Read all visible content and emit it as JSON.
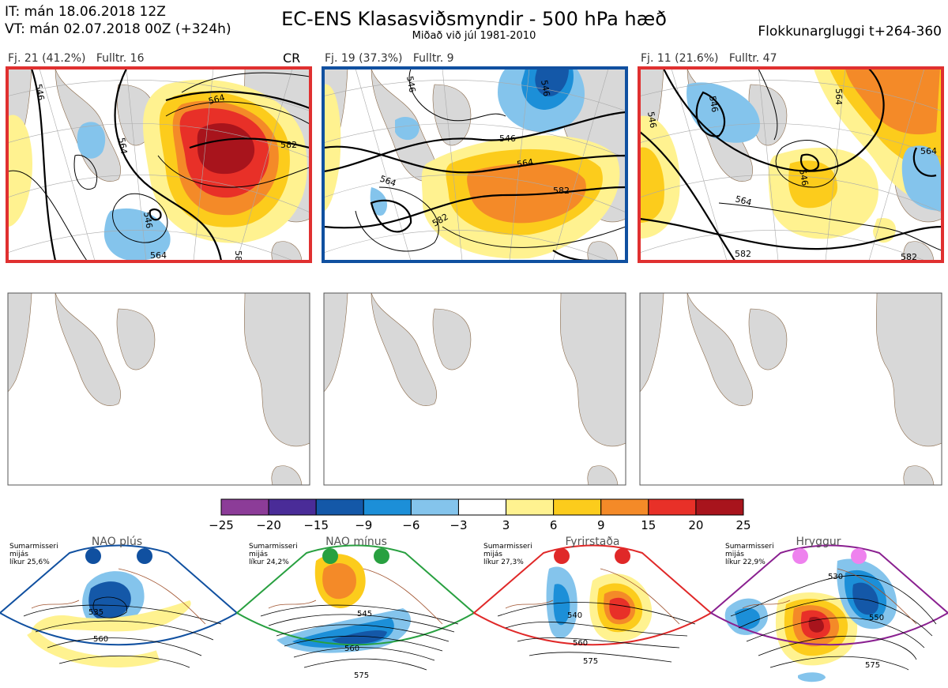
{
  "header": {
    "it": "IT: mán 18.06.2018 12Z",
    "vt": "VT: mán 02.07.2018 00Z  (+324h)",
    "title": "EC-ENS Klasasviðsmyndir - 500 hPa hæð",
    "subtitle": "Miðað við júl 1981-2010",
    "window": "Flokkunargluggi t+264-360"
  },
  "clusters": [
    {
      "label": "Fj. 21 (41.2%)",
      "rep": "Fulltr. 16",
      "tag": "CR",
      "frame_color": "#e03030",
      "contours": [
        "564",
        "564",
        "546",
        "582",
        "58",
        "546",
        "564"
      ]
    },
    {
      "label": "Fj. 19 (37.3%)",
      "rep": "Fulltr. 9",
      "tag": "",
      "frame_color": "#1050a0",
      "contours": [
        "546",
        "546",
        "564",
        "564",
        "582",
        "582",
        "546"
      ]
    },
    {
      "label": "Fj. 11 (21.6%)",
      "rep": "Fulltr. 47",
      "tag": "",
      "frame_color": "#e03030",
      "contours": [
        "546",
        "546",
        "564",
        "564",
        "546",
        "582",
        "564",
        "582"
      ]
    }
  ],
  "colorbar": {
    "ticks": [
      "−25",
      "−20",
      "−15",
      "−9",
      "−6",
      "−3",
      "3",
      "6",
      "9",
      "15",
      "20",
      "25"
    ],
    "colors": [
      "#8c3c98",
      "#4a2c98",
      "#1458a8",
      "#1c8fd8",
      "#84c4ec",
      "#ffffff",
      "#fff290",
      "#fccc1c",
      "#f48a28",
      "#e83028",
      "#a8141c"
    ]
  },
  "regimes": [
    {
      "name": "NAO plús",
      "season": "Sumarmisseri",
      "mean": "mijás",
      "prob": "líkur 25,6%",
      "color": "#1050a0",
      "labels": [
        "535",
        "560"
      ]
    },
    {
      "name": "NAO mínus",
      "season": "Sumarmisseri",
      "mean": "mijás",
      "prob": "líkur 24,2%",
      "color": "#28a040",
      "labels": [
        "545",
        "560",
        "575"
      ]
    },
    {
      "name": "Fyrirstaða",
      "season": "Sumarmisseri",
      "mean": "mijás",
      "prob": "líkur 27,3%",
      "color": "#e02828",
      "labels": [
        "540",
        "560",
        "575"
      ]
    },
    {
      "name": "Hryggur",
      "season": "Sumarmisseri",
      "mean": "mijás",
      "prob": "líkur 22,9%",
      "color": "#8a2090",
      "labels": [
        "530",
        "550",
        "575"
      ]
    }
  ]
}
